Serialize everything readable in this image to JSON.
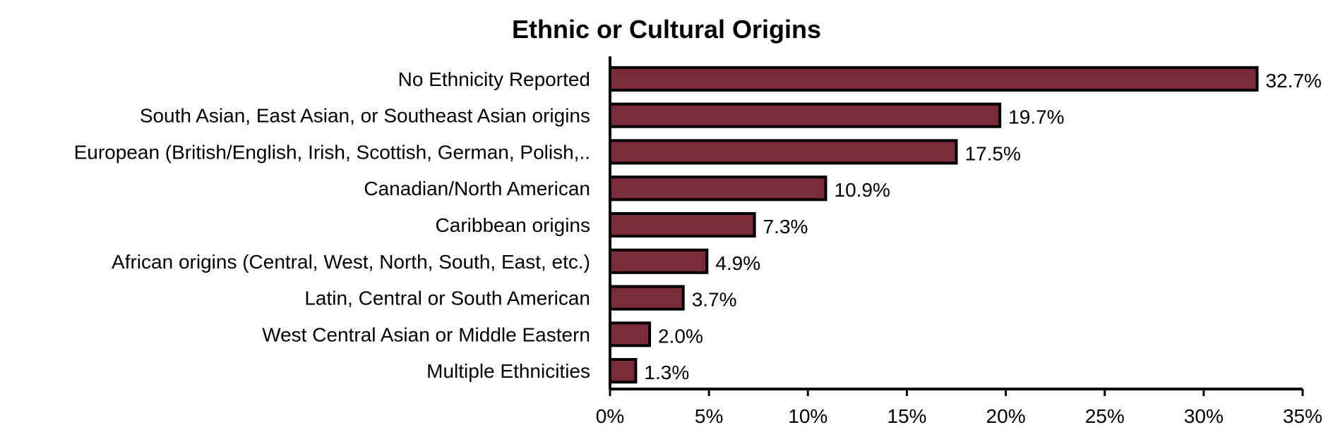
{
  "chart_data": {
    "type": "bar",
    "orientation": "horizontal",
    "title": "Ethnic or Cultural Origins",
    "categories": [
      "No Ethnicity Reported",
      "South Asian, East Asian, or Southeast Asian origins",
      "European (British/English, Irish, Scottish, German, Polish,..",
      "Canadian/North American",
      "Caribbean origins",
      "African origins (Central, West, North, South, East, etc.)",
      "Latin, Central or South American",
      "West Central Asian or Middle Eastern",
      "Multiple Ethnicities"
    ],
    "values": [
      32.7,
      19.7,
      17.5,
      10.9,
      7.3,
      4.9,
      3.7,
      2.0,
      1.3
    ],
    "value_labels": [
      "32.7%",
      "19.7%",
      "17.5%",
      "10.9%",
      "7.3%",
      "4.9%",
      "3.7%",
      "2.0%",
      "1.3%"
    ],
    "xlim": [
      0,
      35
    ],
    "ticks": [
      0,
      5,
      10,
      15,
      20,
      25,
      30,
      35
    ],
    "tick_labels": [
      "0%",
      "5%",
      "10%",
      "15%",
      "20%",
      "25%",
      "30%",
      "35%"
    ],
    "grid": false,
    "legend": "none",
    "bar_color": "#7b2b37",
    "bar_edge_color": "#000000"
  }
}
